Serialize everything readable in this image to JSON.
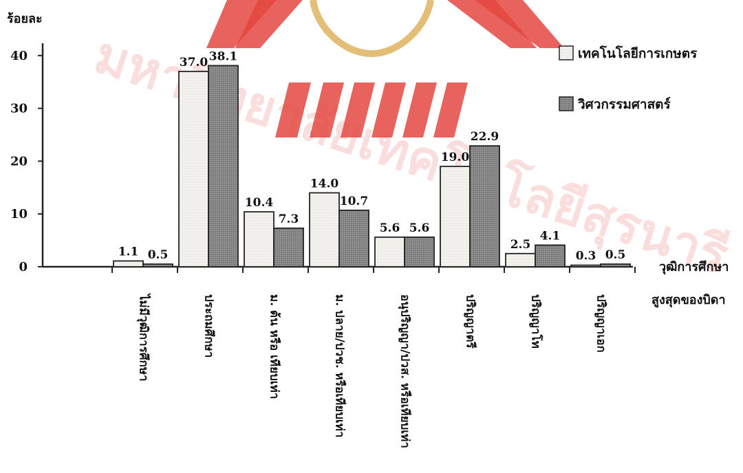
{
  "chart_data": {
    "type": "bar",
    "ylabel": "ร้อยละ",
    "xlabel_line1": "วุฒิการศึกษา",
    "xlabel_line2": "สูงสุดของบิดา",
    "ylim": [
      0,
      42
    ],
    "yticks": [
      "0",
      "10",
      "20",
      "30",
      "40"
    ],
    "categories": [
      "ไม่มีวุฒิการศึกษา",
      "ประถมศึกษา",
      "ม. ต้น หรือ เทียบเท่า",
      "ม. ปลาย/ปวช. หรือเทียบเท่า",
      "อนุปริญญา/ปวส. หรือเทียบเท่า",
      "ปริญญาตรี",
      "ปริญญาโท",
      "ปริญญาเอก"
    ],
    "series": [
      {
        "name": "เทคโนโลยีการเกษตร",
        "values": [
          1.1,
          37.0,
          10.4,
          14.0,
          5.6,
          19.0,
          2.5,
          0.3
        ],
        "labels": [
          "1.1",
          "37.0",
          "10.4",
          "14.0",
          "5.6",
          "19.0",
          "2.5",
          "0.3"
        ],
        "color": "#f4f2ee"
      },
      {
        "name": "วิศวกรรมศาสตร์",
        "values": [
          0.5,
          38.1,
          7.3,
          10.7,
          5.6,
          22.9,
          4.1,
          0.5
        ],
        "labels": [
          "0.5",
          "38.1",
          "7.3",
          "10.7",
          "5.6",
          "22.9",
          "4.1",
          "0.5"
        ],
        "color": "#8a8a8a"
      }
    ],
    "legend_position": "top-right",
    "watermark_text": "มหาวิทยาลัยเทคโนโลยีสุรนารี",
    "watermark_color": "#d9231d"
  }
}
